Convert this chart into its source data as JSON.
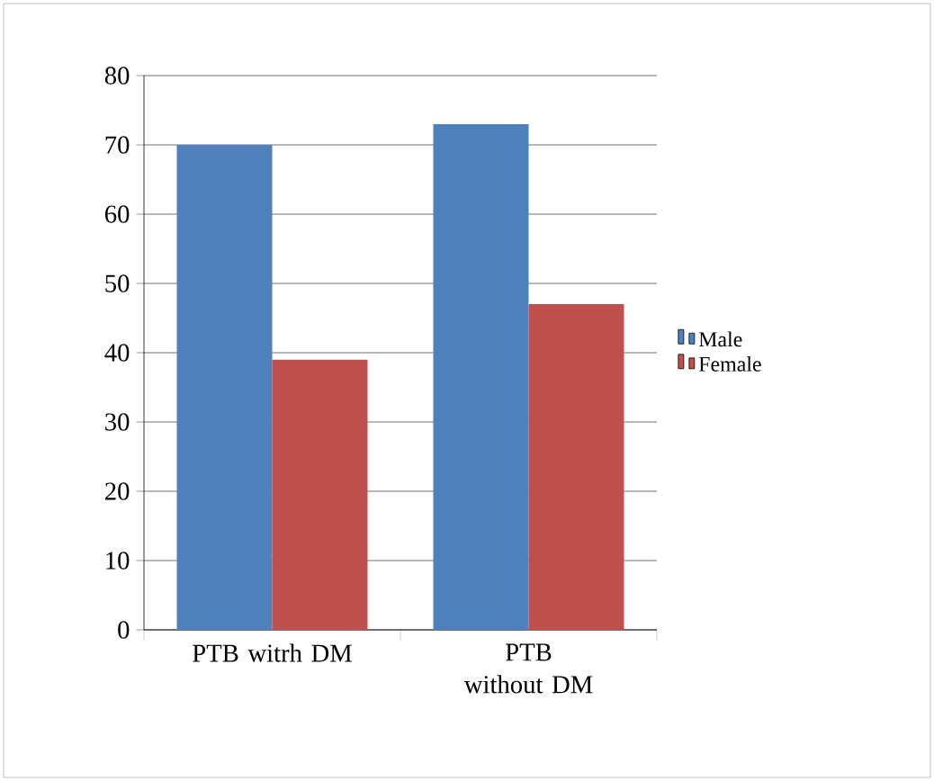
{
  "chart_data": {
    "type": "bar",
    "categories": [
      "PTB witrh DM",
      "PTB without DM"
    ],
    "series": [
      {
        "name": "Male",
        "color": "#4f81bd",
        "values": [
          70,
          73
        ]
      },
      {
        "name": "Female",
        "color": "#c0504d",
        "values": [
          39,
          47
        ]
      }
    ],
    "ylim": [
      0,
      80
    ],
    "yticks": [
      0,
      10,
      20,
      30,
      40,
      50,
      60,
      70,
      80
    ],
    "grid": "y",
    "legend": "right"
  }
}
